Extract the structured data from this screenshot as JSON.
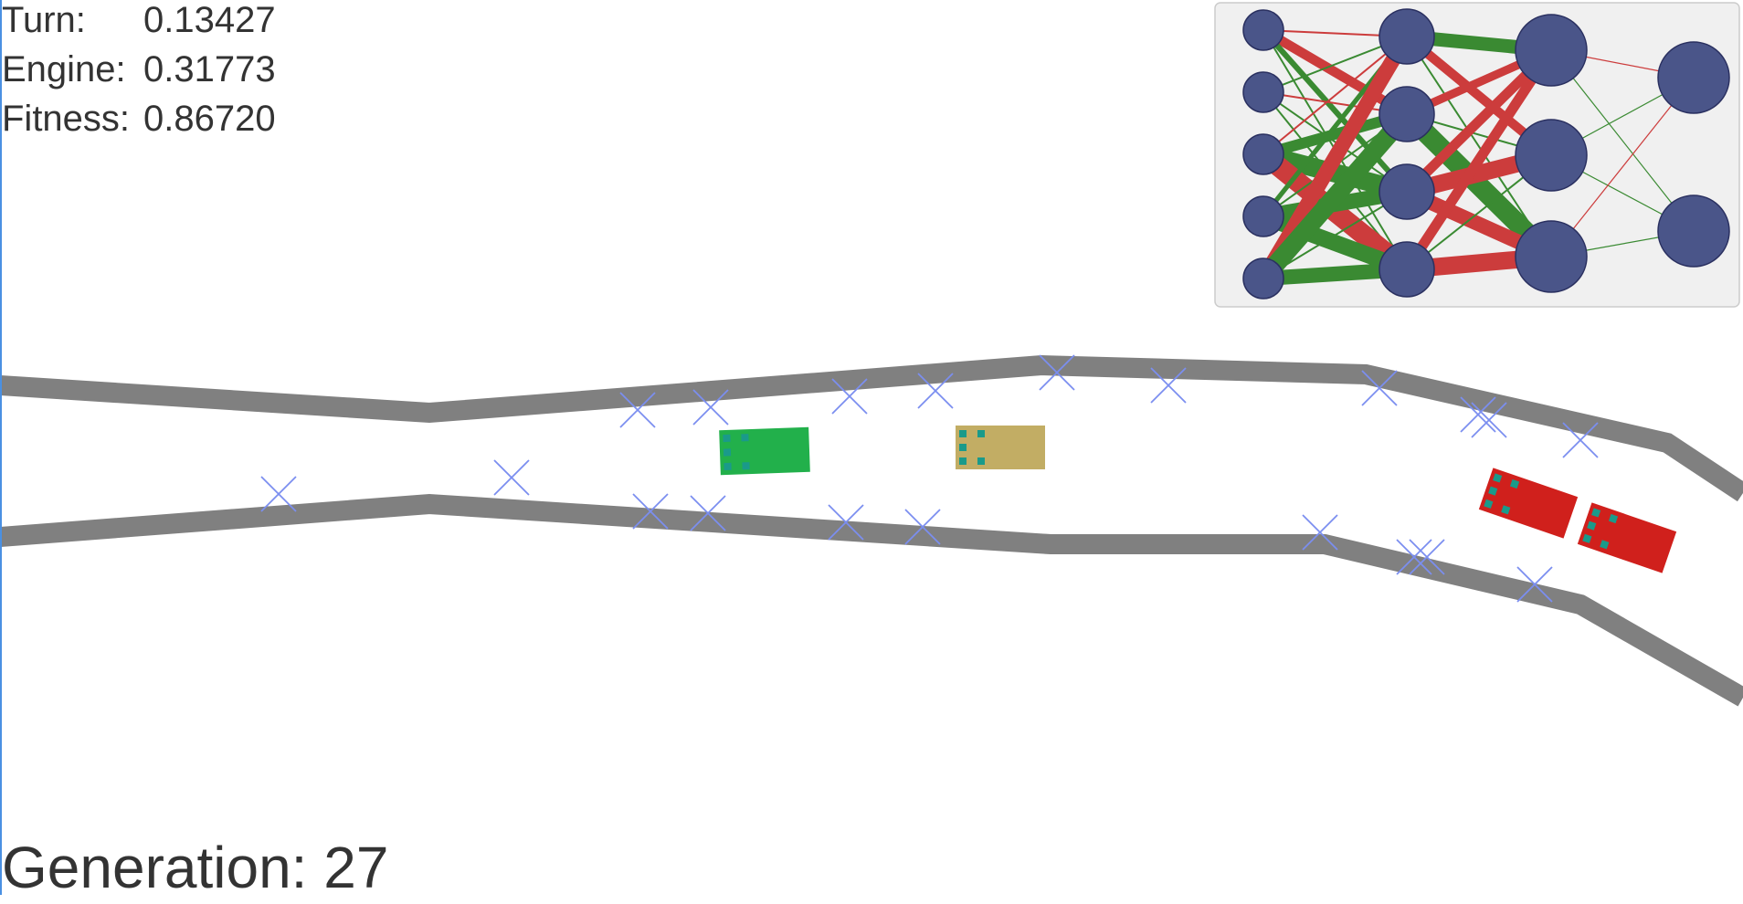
{
  "stats": {
    "turn_label": "Turn:",
    "turn_value": "0.13427",
    "engine_label": "Engine:",
    "engine_value": "0.31773",
    "fitness_label": "Fitness:",
    "fitness_value": "0.86720"
  },
  "generation": {
    "label": "Generation:",
    "value": "27"
  },
  "colors": {
    "track": "#808080",
    "checkpoint": "#7b8ef0",
    "node_fill": "#4a5589",
    "positive_weight": "#3a8a32",
    "negative_weight": "#cc3c3c",
    "network_panel": "#f0f0f0",
    "sensor": "#1a9a8a"
  },
  "network": {
    "layers": [
      5,
      4,
      3,
      2
    ]
  },
  "cars": [
    {
      "name": "car-green",
      "color": "#22b04b"
    },
    {
      "name": "car-tan",
      "color": "#c2ad64"
    },
    {
      "name": "car-red-1",
      "color": "#d0201c"
    },
    {
      "name": "car-red-2",
      "color": "#d0201c"
    }
  ]
}
